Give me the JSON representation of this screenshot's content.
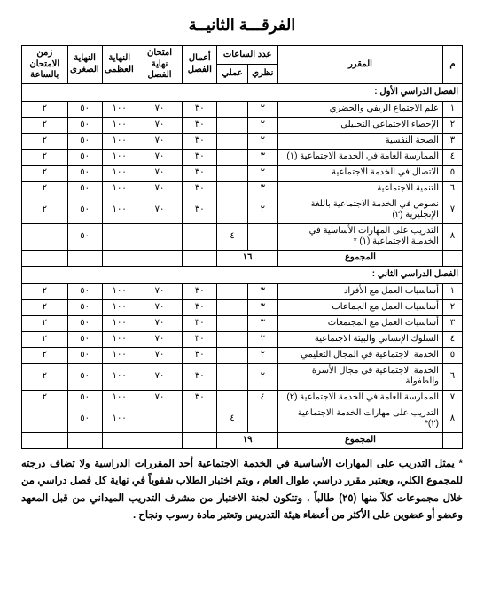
{
  "page_title": "الفرقـــة الثانيــة",
  "headers": {
    "num": "م",
    "course": "المقرر",
    "hours": "عدد الساعات",
    "hours_theory": "نظري",
    "hours_practical": "عملي",
    "classwork": "أعمال الفصل",
    "final_exam": "امتحان نهاية الفصل",
    "max": "النهاية العظمى",
    "min": "النهاية الصغرى",
    "duration": "زمن الامتحان بالساعة"
  },
  "defaults": {
    "classwork": "٣٠",
    "final_exam": "٧٠",
    "max": "١٠٠",
    "min": "٥٠",
    "duration": "٢"
  },
  "sem1": {
    "title": "الفصل الدراسي الأول :",
    "rows": [
      {
        "n": "١",
        "name": "علم الاجتماع الريفي والحضري",
        "th": "٢"
      },
      {
        "n": "٢",
        "name": "الإحصاء الاجتماعي التحليلي",
        "th": "٢"
      },
      {
        "n": "٣",
        "name": "الصحة النفسية",
        "th": "٢"
      },
      {
        "n": "٤",
        "name": "الممارسة العامة في الخدمة الاجتماعية (١)",
        "th": "٣"
      },
      {
        "n": "٥",
        "name": "الاتصال في الخدمة الاجتماعية",
        "th": "٢"
      },
      {
        "n": "٦",
        "name": "التنمية الاجتماعية",
        "th": "٣"
      },
      {
        "n": "٧",
        "name": "نصوص في الخدمة الاجتماعية باللغة الإنجليزية (٢)",
        "th": "٢"
      }
    ],
    "training": {
      "n": "٨",
      "name": "التدريب على المهارات الأساسية في الخدمـة الاجتماعية (١) *",
      "pr": "٤",
      "min": "٥٠"
    },
    "total_label": "المجموع",
    "total_val": "١٦"
  },
  "sem2": {
    "title": "الفصل الدراسي الثاني :",
    "rows": [
      {
        "n": "١",
        "name": "أساسيات العمل مع الأفراد",
        "th": "٣"
      },
      {
        "n": "٢",
        "name": "أساسيات العمل مع الجماعات",
        "th": "٣"
      },
      {
        "n": "٣",
        "name": "أساسيات العمل مع المجتمعات",
        "th": "٣"
      },
      {
        "n": "٤",
        "name": "السلوك الإنساني والبيئة الاجتماعية",
        "th": "٢"
      },
      {
        "n": "٥",
        "name": "الخدمة الاجتماعية في المجال التعليمي",
        "th": "٢"
      },
      {
        "n": "٦",
        "name": "الخدمة الاجتماعية في مجال الأسرة والطفولة",
        "th": "٢"
      },
      {
        "n": "٧",
        "name": "الممارسة العامة في الخدمة الاجتماعية (٢)",
        "th": "٤"
      }
    ],
    "training": {
      "n": "٨",
      "name": "التدريب على مهارات الخدمة الاجتماعية (٢)*",
      "pr": "٤",
      "max": "١٠٠",
      "min": "٥٠"
    },
    "total_label": "المجموع",
    "total_val": "١٩"
  },
  "note": "* يمثل التدريب على المهارات الأساسية في الخدمة الاجتماعية أحد المقررات الدراسية ولا تضاف درجته للمجموع الكلي، ويعتبر مقرر دراسي طوال العام ، ويتم اختبار الطلاب شفوياً في نهاية كل فصل دراسي من خلال مجموعات كلاً منها (٢٥) طالباً ، وتتكون لجنة الاختبار من مشرف التدريب الميداني من قبل المعهد وعضو أو عضوين على الأكثر من أعضاء هيئة التدريس وتعتبر مادة رسوب ونجاح ."
}
